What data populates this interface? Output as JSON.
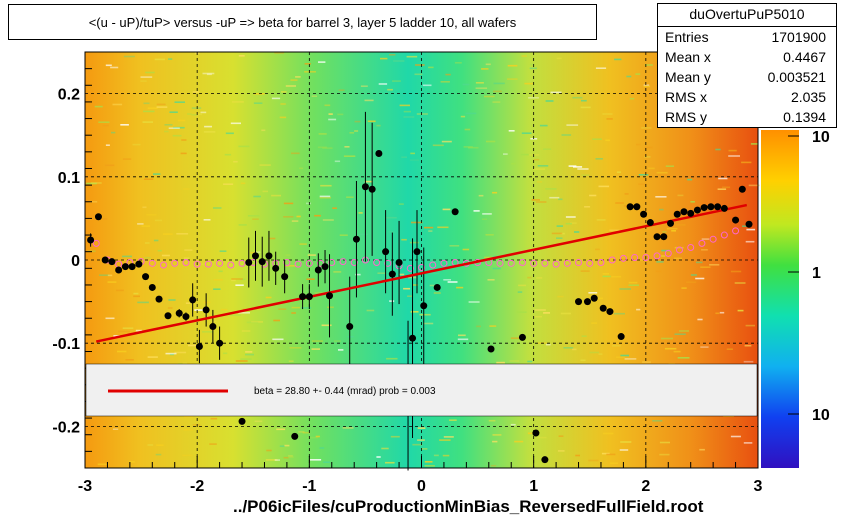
{
  "title": "<(u - uP)/tuP>  versus  -uP => beta for barrel 3, layer 5 ladder 10, all wafers",
  "stats": {
    "name": "duOvertuPuP5010",
    "rows": [
      {
        "key": "Entries",
        "value": "1701900"
      },
      {
        "key": "Mean x",
        "value": "0.4467"
      },
      {
        "key": "Mean y",
        "value": "0.003521"
      },
      {
        "key": "RMS x",
        "value": "2.035"
      },
      {
        "key": "RMS y",
        "value": "0.1394"
      }
    ]
  },
  "fit_text": "beta =   28.80 +-  0.44 (mrad) prob = 0.003",
  "footer": "../P06icFiles/cuProductionMinBias_ReversedFullField.root",
  "colors": {
    "fit_line": "#e00000",
    "profile_open": "#ff66cc",
    "points": "#000000"
  },
  "chart_data": {
    "type": "scatter",
    "x_ticks": [
      "-3",
      "-2",
      "-1",
      "0",
      "1",
      "2",
      "3"
    ],
    "y_ticks": [
      "0.2",
      "0.1",
      "0",
      "-0.1",
      "-0.2"
    ],
    "z_ticks": [
      "10",
      "1",
      "10"
    ],
    "xlim": [
      -3,
      3
    ],
    "ylim": [
      -0.25,
      0.25
    ],
    "grid": true,
    "z_scale": "log",
    "fit_line": {
      "x": [
        -2.9,
        2.9
      ],
      "y": [
        -0.098,
        0.066
      ]
    },
    "points": [
      {
        "x": -2.95,
        "y": 0.024,
        "err": 0.008
      },
      {
        "x": -2.88,
        "y": 0.052,
        "err": 0
      },
      {
        "x": -2.82,
        "y": 0.0,
        "err": 0
      },
      {
        "x": -2.76,
        "y": -0.002,
        "err": 0
      },
      {
        "x": -2.7,
        "y": -0.012,
        "err": 0
      },
      {
        "x": -2.64,
        "y": -0.008,
        "err": 0
      },
      {
        "x": -2.58,
        "y": -0.008,
        "err": 0
      },
      {
        "x": -2.52,
        "y": -0.005,
        "err": 0
      },
      {
        "x": -2.46,
        "y": -0.02,
        "err": 0
      },
      {
        "x": -2.4,
        "y": -0.033,
        "err": 0
      },
      {
        "x": -2.34,
        "y": -0.047,
        "err": 0
      },
      {
        "x": -2.26,
        "y": -0.067,
        "err": 0
      },
      {
        "x": -2.16,
        "y": -0.064,
        "err": 0.005
      },
      {
        "x": -2.1,
        "y": -0.068,
        "err": 0.005
      },
      {
        "x": -2.04,
        "y": -0.048,
        "err": 0.02
      },
      {
        "x": -1.98,
        "y": -0.104,
        "err": 0.02
      },
      {
        "x": -1.92,
        "y": -0.06,
        "err": 0.02
      },
      {
        "x": -1.86,
        "y": -0.08,
        "err": 0.02
      },
      {
        "x": -1.8,
        "y": -0.1,
        "err": 0.02
      },
      {
        "x": -1.6,
        "y": -0.194,
        "err": 0
      },
      {
        "x": -1.54,
        "y": -0.003,
        "err": 0.03
      },
      {
        "x": -1.48,
        "y": 0.005,
        "err": 0.03
      },
      {
        "x": -1.42,
        "y": -0.002,
        "err": 0.03
      },
      {
        "x": -1.36,
        "y": 0.005,
        "err": 0.03
      },
      {
        "x": -1.3,
        "y": -0.01,
        "err": 0.02
      },
      {
        "x": -1.22,
        "y": -0.02,
        "err": 0.02
      },
      {
        "x": -1.13,
        "y": -0.212,
        "err": 0
      },
      {
        "x": -1.06,
        "y": -0.044,
        "err": 0.015
      },
      {
        "x": -1.0,
        "y": -0.044,
        "err": 0.015
      },
      {
        "x": -0.92,
        "y": -0.012,
        "err": 0.02
      },
      {
        "x": -0.86,
        "y": -0.008,
        "err": 0.02
      },
      {
        "x": -0.82,
        "y": -0.043,
        "err": 0.05
      },
      {
        "x": -0.64,
        "y": -0.08,
        "err": 0.06
      },
      {
        "x": -0.58,
        "y": 0.025,
        "err": 0.07
      },
      {
        "x": -0.5,
        "y": 0.088,
        "err": 0.09
      },
      {
        "x": -0.44,
        "y": 0.085,
        "err": 0.08
      },
      {
        "x": -0.38,
        "y": 0.128,
        "err": 0
      },
      {
        "x": -0.32,
        "y": 0.01,
        "err": 0.05
      },
      {
        "x": -0.26,
        "y": -0.017,
        "err": 0.05
      },
      {
        "x": -0.2,
        "y": -0.003,
        "err": 0.05
      },
      {
        "x": -0.12,
        "y": -0.163,
        "err": 0.09
      },
      {
        "x": -0.08,
        "y": -0.094,
        "err": 0.12
      },
      {
        "x": -0.04,
        "y": 0.01,
        "err": 0.05
      },
      {
        "x": 0.02,
        "y": -0.055,
        "err": 0.07
      },
      {
        "x": 0.14,
        "y": -0.033,
        "err": 0
      },
      {
        "x": 0.3,
        "y": 0.058,
        "err": 0
      },
      {
        "x": 0.62,
        "y": -0.107,
        "err": 0
      },
      {
        "x": 0.9,
        "y": -0.093,
        "err": 0
      },
      {
        "x": 1.02,
        "y": -0.208,
        "err": 0
      },
      {
        "x": 1.1,
        "y": -0.24,
        "err": 0
      },
      {
        "x": 1.4,
        "y": -0.05,
        "err": 0
      },
      {
        "x": 1.48,
        "y": -0.05,
        "err": 0
      },
      {
        "x": 1.54,
        "y": -0.046,
        "err": 0
      },
      {
        "x": 1.62,
        "y": -0.058,
        "err": 0
      },
      {
        "x": 1.68,
        "y": -0.062,
        "err": 0
      },
      {
        "x": 1.78,
        "y": -0.092,
        "err": 0
      },
      {
        "x": 1.86,
        "y": 0.064,
        "err": 0
      },
      {
        "x": 1.92,
        "y": 0.064,
        "err": 0
      },
      {
        "x": 1.98,
        "y": 0.055,
        "err": 0
      },
      {
        "x": 2.04,
        "y": 0.045,
        "err": 0
      },
      {
        "x": 2.1,
        "y": 0.028,
        "err": 0
      },
      {
        "x": 2.16,
        "y": 0.028,
        "err": 0
      },
      {
        "x": 2.22,
        "y": 0.044,
        "err": 0
      },
      {
        "x": 2.28,
        "y": 0.055,
        "err": 0
      },
      {
        "x": 2.34,
        "y": 0.058,
        "err": 0
      },
      {
        "x": 2.4,
        "y": 0.056,
        "err": 0
      },
      {
        "x": 2.46,
        "y": 0.06,
        "err": 0
      },
      {
        "x": 2.52,
        "y": 0.063,
        "err": 0
      },
      {
        "x": 2.58,
        "y": 0.064,
        "err": 0
      },
      {
        "x": 2.64,
        "y": 0.064,
        "err": 0
      },
      {
        "x": 2.7,
        "y": 0.062,
        "err": 0
      },
      {
        "x": 2.8,
        "y": 0.048,
        "err": 0
      },
      {
        "x": 2.86,
        "y": 0.085,
        "err": 0
      },
      {
        "x": 2.92,
        "y": 0.043,
        "err": 0
      }
    ],
    "profile": [
      {
        "x": -2.9,
        "y": 0.02
      },
      {
        "x": -2.8,
        "y": 0.0
      },
      {
        "x": -2.7,
        "y": -0.005
      },
      {
        "x": -2.6,
        "y": -0.003
      },
      {
        "x": -2.5,
        "y": -0.002
      },
      {
        "x": -2.4,
        "y": -0.004
      },
      {
        "x": -2.3,
        "y": -0.006
      },
      {
        "x": -2.2,
        "y": -0.004
      },
      {
        "x": -2.1,
        "y": -0.003
      },
      {
        "x": -2.0,
        "y": -0.005
      },
      {
        "x": -1.9,
        "y": -0.005
      },
      {
        "x": -1.8,
        "y": -0.004
      },
      {
        "x": -1.7,
        "y": -0.006
      },
      {
        "x": -1.6,
        "y": -0.004
      },
      {
        "x": -1.5,
        "y": -0.003
      },
      {
        "x": -1.4,
        "y": -0.005
      },
      {
        "x": -1.3,
        "y": -0.004
      },
      {
        "x": -1.2,
        "y": -0.003
      },
      {
        "x": -1.1,
        "y": -0.005
      },
      {
        "x": -1.0,
        "y": -0.004
      },
      {
        "x": -0.9,
        "y": -0.004
      },
      {
        "x": -0.8,
        "y": -0.003
      },
      {
        "x": -0.7,
        "y": -0.002
      },
      {
        "x": -0.6,
        "y": -0.003
      },
      {
        "x": -0.5,
        "y": 0.0
      },
      {
        "x": -0.4,
        "y": -0.003
      },
      {
        "x": -0.3,
        "y": -0.004
      },
      {
        "x": -0.2,
        "y": -0.007
      },
      {
        "x": -0.1,
        "y": -0.01
      },
      {
        "x": 0.0,
        "y": -0.009
      },
      {
        "x": 0.1,
        "y": -0.006
      },
      {
        "x": 0.2,
        "y": -0.004
      },
      {
        "x": 0.3,
        "y": -0.003
      },
      {
        "x": 0.4,
        "y": -0.004
      },
      {
        "x": 0.5,
        "y": -0.003
      },
      {
        "x": 0.6,
        "y": -0.003
      },
      {
        "x": 0.7,
        "y": -0.004
      },
      {
        "x": 0.8,
        "y": -0.004
      },
      {
        "x": 0.9,
        "y": -0.003
      },
      {
        "x": 1.0,
        "y": -0.004
      },
      {
        "x": 1.1,
        "y": -0.004
      },
      {
        "x": 1.2,
        "y": -0.005
      },
      {
        "x": 1.3,
        "y": -0.004
      },
      {
        "x": 1.4,
        "y": -0.003
      },
      {
        "x": 1.5,
        "y": -0.004
      },
      {
        "x": 1.6,
        "y": -0.003
      },
      {
        "x": 1.7,
        "y": 0.0
      },
      {
        "x": 1.8,
        "y": 0.002
      },
      {
        "x": 1.9,
        "y": 0.003
      },
      {
        "x": 2.0,
        "y": 0.003
      },
      {
        "x": 2.1,
        "y": 0.005
      },
      {
        "x": 2.2,
        "y": 0.008
      },
      {
        "x": 2.3,
        "y": 0.012
      },
      {
        "x": 2.4,
        "y": 0.015
      },
      {
        "x": 2.5,
        "y": 0.02
      },
      {
        "x": 2.6,
        "y": 0.025
      },
      {
        "x": 2.7,
        "y": 0.03
      },
      {
        "x": 2.8,
        "y": 0.035
      }
    ]
  }
}
